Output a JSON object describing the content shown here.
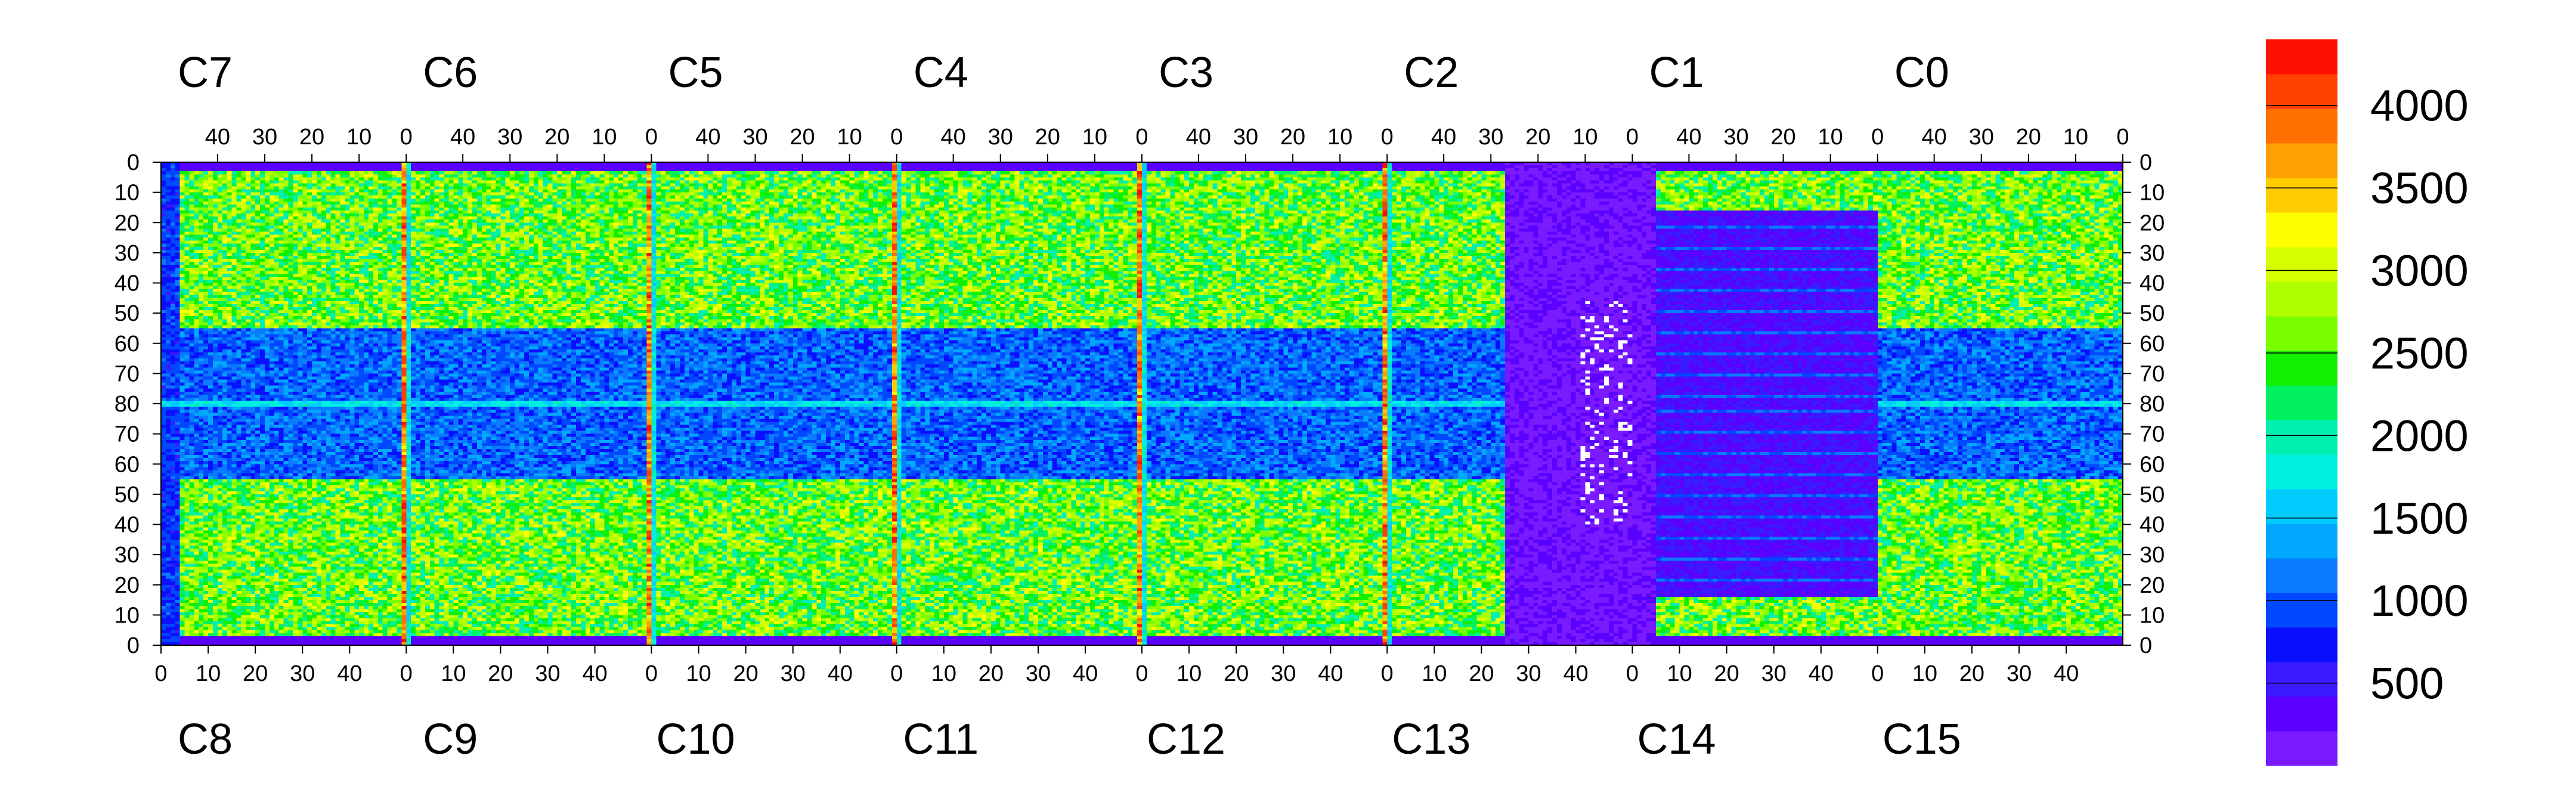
{
  "chart_data": {
    "type": "heatmap",
    "title": "",
    "xlabel": "",
    "ylabel": "",
    "chips_top": [
      "C7",
      "C6",
      "C5",
      "C4",
      "C3",
      "C2",
      "C1",
      "C0"
    ],
    "chips_bottom": [
      "C8",
      "C9",
      "C10",
      "C11",
      "C12",
      "C13",
      "C14",
      "C15"
    ],
    "top_x_ticks": [
      "40",
      "30",
      "20",
      "10",
      "0"
    ],
    "bottom_x_ticks": [
      "0",
      "10",
      "20",
      "30",
      "40"
    ],
    "y_ticks_upper": [
      "0",
      "10",
      "20",
      "30",
      "40",
      "50",
      "60",
      "70",
      "80"
    ],
    "y_ticks_lower": [
      "70",
      "60",
      "50",
      "40",
      "30",
      "20",
      "10",
      "0"
    ],
    "columns_per_chip": 52,
    "rows_per_half": 80,
    "zlim": [
      0,
      4400
    ],
    "colorbar": {
      "ticks": [
        500,
        1000,
        1500,
        2000,
        2500,
        3000,
        3500,
        4000
      ],
      "tick_labels": [
        "500",
        "1000",
        "1500",
        "2000",
        "2500",
        "3000",
        "3500",
        "4000"
      ],
      "colors": [
        "#7a1aff",
        "#5a00ff",
        "#3a1aff",
        "#0a10ff",
        "#0048ff",
        "#0a7aff",
        "#00a8ff",
        "#00ccff",
        "#00f0e0",
        "#00f0b0",
        "#00f060",
        "#10f000",
        "#7aff00",
        "#b0ff00",
        "#d8ff00",
        "#ffff00",
        "#ffcc00",
        "#ffa000",
        "#ff7000",
        "#ff4000",
        "#ff1000"
      ]
    },
    "description_values": {
      "typical_active_pixel": 2300,
      "low_band_rows_60_80": 900,
      "dead_regions": 200,
      "hot_column_edges": 4000,
      "chip_C13_C14_area": 250
    }
  }
}
